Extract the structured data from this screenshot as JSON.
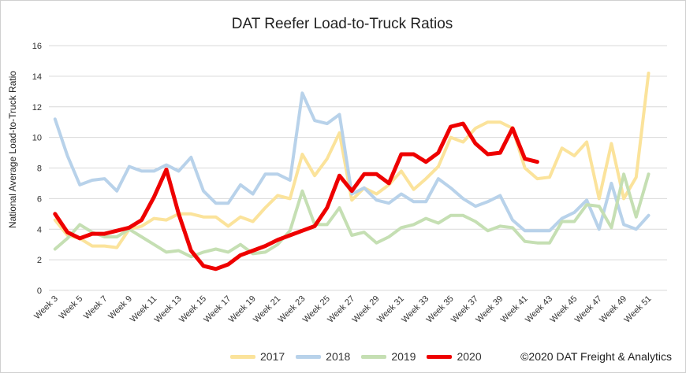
{
  "chart_data": {
    "type": "line",
    "title": "DAT Reefer Load-to-Truck Ratios",
    "xlabel": "",
    "ylabel": "National Average Load-to-Truck Ratio",
    "ylim": [
      0,
      16
    ],
    "yticks": [
      0,
      2,
      4,
      6,
      8,
      10,
      12,
      14,
      16
    ],
    "grid": "horizontal",
    "legend_position": "bottom",
    "x": [
      "Week 3",
      "Week 4",
      "Week 5",
      "Week 6",
      "Week 7",
      "Week 8",
      "Week 9",
      "Week 10",
      "Week 11",
      "Week 12",
      "Week 13",
      "Week 14",
      "Week 15",
      "Week 16",
      "Week 17",
      "Week 18",
      "Week 19",
      "Week 20",
      "Week 21",
      "Week 22",
      "Week 23",
      "Week 24",
      "Week 25",
      "Week 26",
      "Week 27",
      "Week 28",
      "Week 29",
      "Week 30",
      "Week 31",
      "Week 32",
      "Week 33",
      "Week 34",
      "Week 35",
      "Week 36",
      "Week 37",
      "Week 38",
      "Week 39",
      "Week 40",
      "Week 41",
      "Week 42",
      "Week 43",
      "Week 44",
      "Week 45",
      "Week 46",
      "Week 47",
      "Week 48",
      "Week 49",
      "Week 50",
      "Week 51",
      "Week 52"
    ],
    "x_tick_labels": [
      "Week 3",
      "Week 5",
      "Week 7",
      "Week 9",
      "Week 11",
      "Week 13",
      "Week 15",
      "Week 17",
      "Week 19",
      "Week 21",
      "Week 23",
      "Week 25",
      "Week 27",
      "Week 29",
      "Week 31",
      "Week 33",
      "Week 35",
      "Week 37",
      "Week 39",
      "Week 41",
      "Week 43",
      "Week 45",
      "Week 47",
      "Week 49",
      "Week 51"
    ],
    "series": [
      {
        "name": "2017",
        "color": "#fbe39b",
        "values": [
          4.6,
          3.6,
          3.4,
          2.9,
          2.9,
          2.8,
          4.0,
          4.2,
          4.7,
          4.6,
          5.0,
          5.0,
          4.8,
          4.8,
          4.2,
          4.8,
          4.5,
          5.4,
          6.2,
          6.0,
          8.9,
          7.5,
          8.6,
          10.3,
          5.9,
          6.7,
          6.3,
          6.9,
          7.8,
          6.6,
          7.3,
          8.1,
          10.0,
          9.7,
          10.6,
          11.0,
          11.0,
          10.6,
          8.0,
          7.3,
          7.4,
          9.3,
          8.8,
          9.7,
          6.0,
          9.6,
          6.0,
          7.4,
          14.2,
          null
        ]
      },
      {
        "name": "2018",
        "color": "#b8d2ea",
        "values": [
          11.2,
          8.8,
          6.9,
          7.2,
          7.3,
          6.5,
          8.1,
          7.8,
          7.8,
          8.2,
          7.8,
          8.7,
          6.5,
          5.7,
          5.7,
          6.9,
          6.3,
          7.6,
          7.6,
          7.2,
          12.9,
          11.1,
          10.9,
          11.5,
          6.3,
          6.7,
          5.9,
          5.7,
          6.3,
          5.8,
          5.8,
          7.3,
          6.7,
          6.0,
          5.5,
          5.8,
          6.2,
          4.6,
          3.9,
          3.9,
          3.9,
          4.7,
          5.1,
          5.9,
          4.0,
          7.0,
          4.3,
          4.0,
          4.9,
          null
        ]
      },
      {
        "name": "2019",
        "color": "#c5dfb3",
        "values": [
          2.7,
          3.4,
          4.3,
          3.8,
          3.5,
          3.5,
          4.0,
          3.5,
          3.0,
          2.5,
          2.6,
          2.2,
          2.5,
          2.7,
          2.5,
          3.0,
          2.4,
          2.5,
          3.0,
          3.9,
          6.5,
          4.3,
          4.3,
          5.4,
          3.6,
          3.8,
          3.1,
          3.5,
          4.1,
          4.3,
          4.7,
          4.4,
          4.9,
          4.9,
          4.5,
          3.9,
          4.2,
          4.1,
          3.2,
          3.1,
          3.1,
          4.5,
          4.5,
          5.6,
          5.5,
          4.1,
          7.6,
          4.8,
          7.6,
          null
        ]
      },
      {
        "name": "2020",
        "color": "#ee0000",
        "values": [
          5.0,
          3.8,
          3.4,
          3.7,
          3.7,
          3.9,
          4.1,
          4.6,
          6.1,
          7.9,
          5.0,
          2.6,
          1.6,
          1.4,
          1.7,
          2.3,
          2.6,
          2.9,
          3.3,
          3.6,
          3.9,
          4.2,
          5.4,
          7.5,
          6.5,
          7.6,
          7.6,
          7.0,
          8.9,
          8.9,
          8.4,
          9.0,
          10.7,
          10.9,
          9.6,
          8.9,
          9.0,
          10.6,
          8.6,
          8.4,
          null,
          null,
          null,
          null,
          null,
          null,
          null,
          null,
          null,
          null
        ]
      }
    ]
  },
  "footer": {
    "credit": "©2020 DAT Freight & Analytics"
  }
}
